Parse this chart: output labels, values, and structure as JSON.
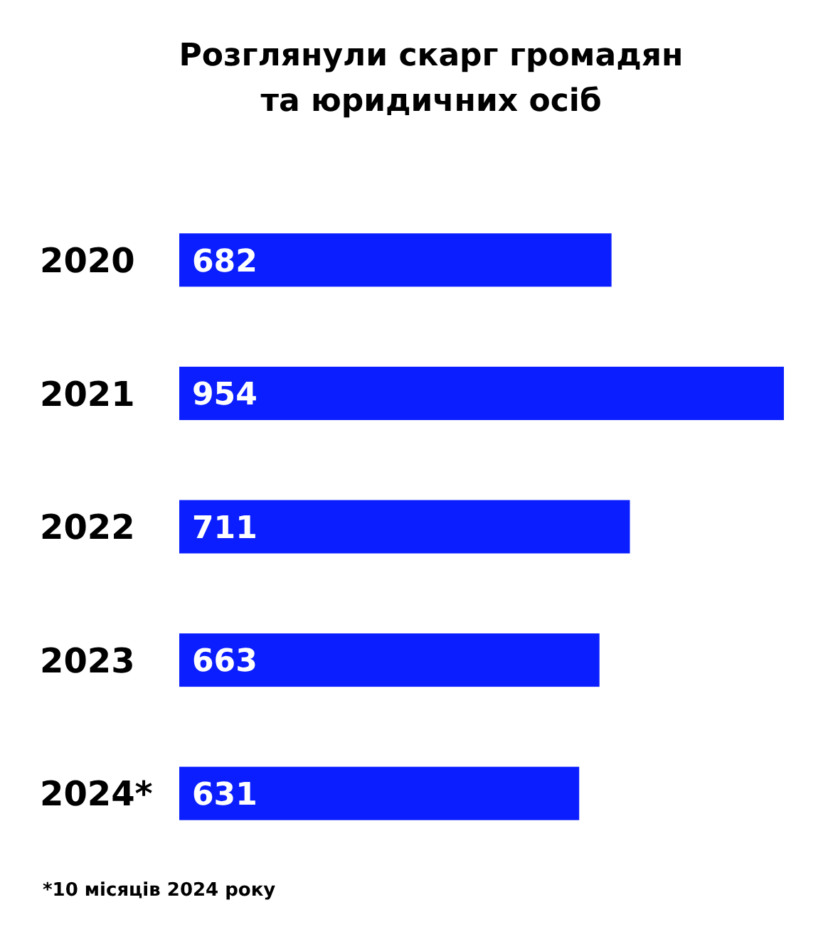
{
  "chart_data": {
    "type": "bar",
    "orientation": "horizontal",
    "title": "Розглянули скарг громадян\nта юридичних осіб",
    "categories": [
      "2020",
      "2021",
      "2022",
      "2023",
      "2024*"
    ],
    "values": [
      682,
      954,
      711,
      663,
      631
    ],
    "color": "#0a1eff",
    "data_labels": true,
    "annotations": [
      "*10 місяців 2024 року"
    ]
  }
}
